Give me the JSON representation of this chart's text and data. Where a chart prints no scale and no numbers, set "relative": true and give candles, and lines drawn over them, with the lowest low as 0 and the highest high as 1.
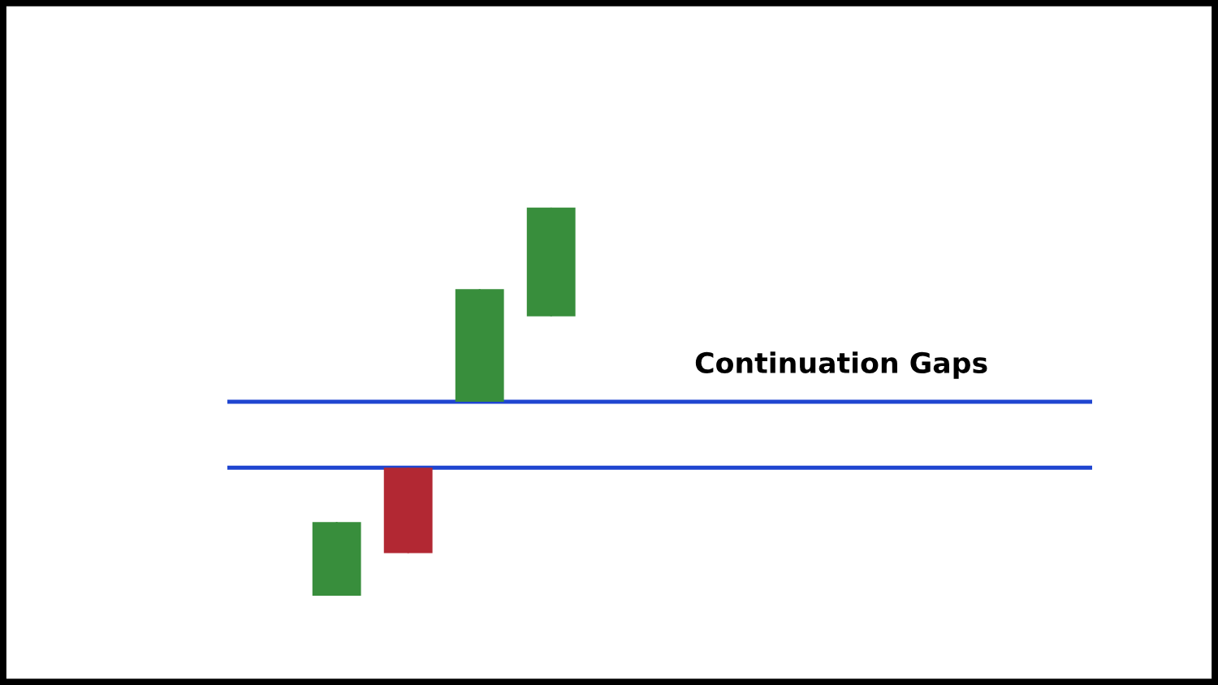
{
  "chart_data": {
    "type": "candlestick",
    "relative": true,
    "categories": [
      null,
      null,
      null,
      null
    ],
    "ohlc": [
      [
        0,
        0.19,
        0,
        0.19
      ],
      [
        0.33,
        0.33,
        0.11,
        0.11
      ],
      [
        0.5,
        0.79,
        0.5,
        0.79
      ],
      [
        0.72,
        1,
        0.72,
        1
      ]
    ],
    "colors": [
      "#388e3c",
      "#b22833",
      "#388e3c",
      "#388e3c"
    ],
    "ref_lines": [
      {
        "axis": "y",
        "value": 0.5,
        "color": "#1f45d0"
      },
      {
        "axis": "y",
        "value": 0.33,
        "color": "#1f45d0"
      }
    ],
    "annotations": [
      "Continuation Gaps"
    ]
  }
}
